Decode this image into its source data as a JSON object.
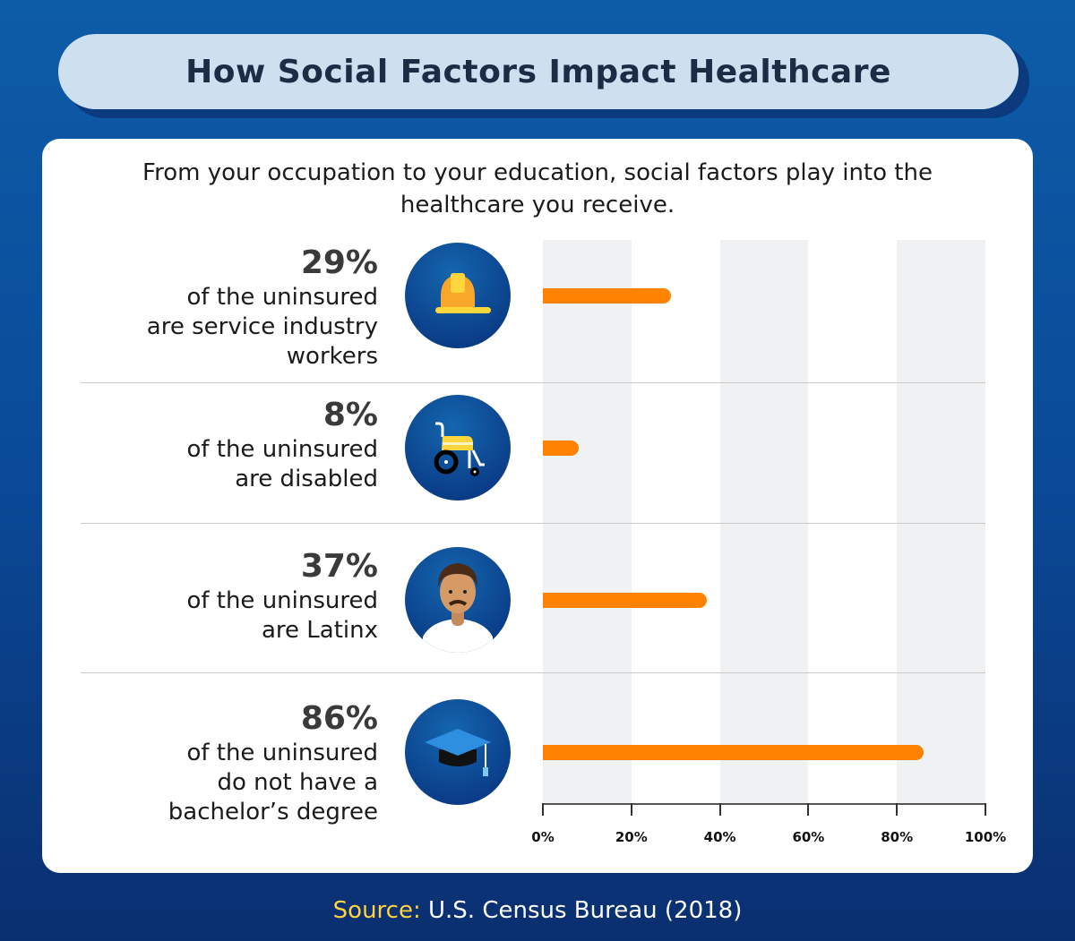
{
  "title": "How Social Factors Impact Healthcare",
  "subtitle": "From your occupation to your education, social factors play into the healthcare you receive.",
  "source_label": "Source:",
  "source_text": "U.S. Census Bureau (2018)",
  "colors": {
    "bar": "#ff8300",
    "background": "#0d5ca8",
    "title_bg": "#cce0ef",
    "band": "#f0f1f3"
  },
  "chart_data": {
    "type": "bar",
    "orientation": "horizontal",
    "categories": [
      "of the uninsured are service industry workers",
      "of the uninsured are disabled",
      "of the uninsured are Latinx",
      "of the uninsured do not have a bachelor’s degree"
    ],
    "values": [
      29,
      8,
      37,
      86
    ],
    "value_labels": [
      "29%",
      "8%",
      "37%",
      "86%"
    ],
    "icons": [
      "hard-hat-icon",
      "wheelchair-icon",
      "person-icon",
      "graduation-cap-icon"
    ],
    "xlim": [
      0,
      100
    ],
    "ticks": [
      "0%",
      "20%",
      "40%",
      "60%",
      "80%",
      "100%"
    ],
    "grid": "alternating bands"
  },
  "rows": [
    {
      "pct": "29%",
      "lines": [
        "of the uninsured",
        "are service industry",
        "workers"
      ]
    },
    {
      "pct": "8%",
      "lines": [
        "of the uninsured",
        "are disabled"
      ]
    },
    {
      "pct": "37%",
      "lines": [
        "of the uninsured",
        "are Latinx"
      ]
    },
    {
      "pct": "86%",
      "lines": [
        "of the uninsured",
        "do not have a",
        "bachelor’s degree"
      ]
    }
  ]
}
